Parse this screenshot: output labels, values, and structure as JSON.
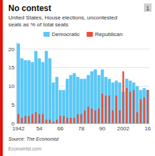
{
  "chart_data": {
    "type": "bar",
    "title": "No contest",
    "subtitle": "United States, House elections, uncontested\nseats as % of total seats",
    "annotations": [
      "1",
      "Source: The Economist",
      "Economist.com"
    ],
    "categories": [
      "1942",
      null,
      null,
      null,
      null,
      null,
      "54",
      null,
      null,
      null,
      null,
      null,
      "66",
      null,
      null,
      null,
      null,
      null,
      "78",
      null,
      null,
      null,
      null,
      null,
      "90",
      null,
      null,
      null,
      null,
      null,
      "2002",
      null,
      null,
      null,
      null,
      null,
      null,
      "16"
    ],
    "series": [
      {
        "name": "Democratic",
        "color": "#5bc8f5",
        "values": [
          21.5,
          17.5,
          17.0,
          17.0,
          16.5,
          19.5,
          17.5,
          16.5,
          19.5,
          17.5,
          11.0,
          12.5,
          9.0,
          9.0,
          12.0,
          13.0,
          13.5,
          12.5,
          12.0,
          12.0,
          13.0,
          14.0,
          14.5,
          13.0,
          14.5,
          12.5,
          12.0,
          11.0,
          11.5,
          11.0,
          8.5,
          12.0,
          11.5,
          11.0,
          10.0,
          9.0,
          9.5,
          9.0
        ]
      },
      {
        "name": "Republican",
        "color": "#e8503a",
        "values": [
          2.5,
          1.5,
          2.0,
          2.0,
          2.5,
          3.0,
          2.5,
          2.5,
          1.0,
          1.0,
          0.5,
          1.0,
          2.0,
          2.0,
          1.5,
          1.5,
          1.5,
          2.5,
          2.5,
          3.5,
          4.5,
          4.0,
          3.5,
          4.0,
          8.0,
          7.5,
          7.5,
          3.5,
          7.5,
          3.5,
          14.0,
          9.5,
          8.5,
          9.0,
          3.0,
          6.5,
          7.0,
          9.0
        ]
      }
    ],
    "ylim": [
      0,
      22
    ],
    "yticks": [
      0,
      5,
      10,
      15,
      20
    ],
    "grid": true,
    "legend": "top"
  }
}
